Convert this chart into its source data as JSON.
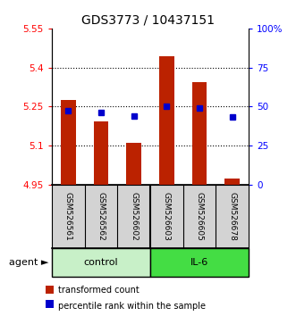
{
  "title": "GDS3773 / 10437151",
  "samples": [
    "GSM526561",
    "GSM526562",
    "GSM526602",
    "GSM526603",
    "GSM526605",
    "GSM526678"
  ],
  "bar_values": [
    5.275,
    5.195,
    5.11,
    5.445,
    5.345,
    4.975
  ],
  "bar_base": 4.95,
  "blue_values": [
    5.235,
    5.228,
    5.215,
    5.25,
    5.245,
    5.21
  ],
  "ymin": 4.95,
  "ymax": 5.55,
  "y_ticks": [
    4.95,
    5.1,
    5.25,
    5.4,
    5.55
  ],
  "y_tick_labels": [
    "4.95",
    "5.1",
    "5.25",
    "5.4",
    "5.55"
  ],
  "y2_ticks": [
    0,
    25,
    50,
    75,
    100
  ],
  "y2_tick_labels": [
    "0",
    "25",
    "50",
    "75",
    "100%"
  ],
  "grid_lines": [
    5.1,
    5.25,
    5.4
  ],
  "control_color": "#c8f0c8",
  "il6_color": "#44dd44",
  "sample_bg_color": "#d3d3d3",
  "bar_color": "#bb2200",
  "blue_color": "#0000cc",
  "agent_label": "agent",
  "control_label": "control",
  "il6_label": "IL-6",
  "legend_bar": "transformed count",
  "legend_blue": "percentile rank within the sample",
  "title_fontsize": 10,
  "tick_fontsize": 7.5,
  "sample_label_fontsize": 6.5,
  "agent_fontsize": 8,
  "legend_fontsize": 7
}
